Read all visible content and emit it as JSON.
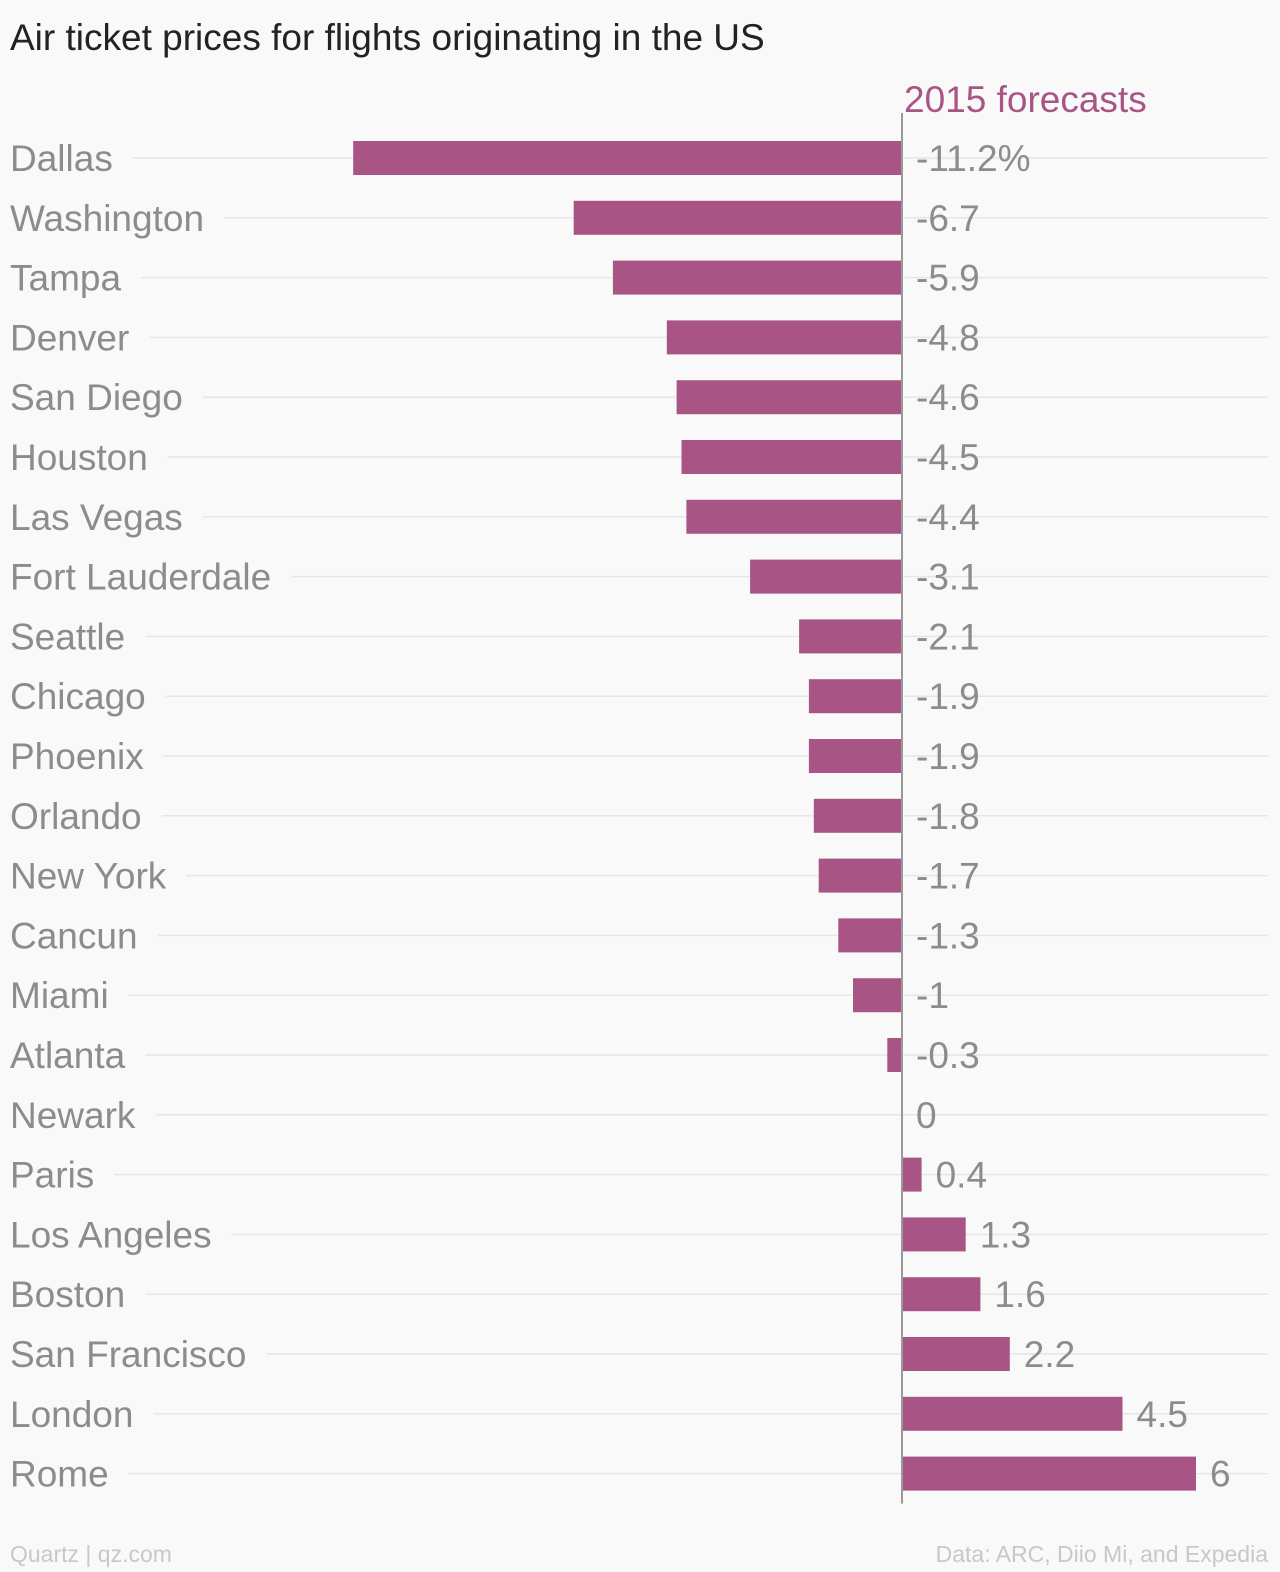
{
  "chart_data": {
    "type": "bar",
    "orientation": "horizontal",
    "title": "Air ticket prices for flights originating in the US",
    "series": [
      {
        "name": "2015 forecasts",
        "color": "#a85586",
        "values": [
          -11.2,
          -6.7,
          -5.9,
          -4.8,
          -4.6,
          -4.5,
          -4.4,
          -3.1,
          -2.1,
          -1.9,
          -1.9,
          -1.8,
          -1.7,
          -1.3,
          -1,
          -0.3,
          0,
          0.4,
          1.3,
          1.6,
          2.2,
          4.5,
          6
        ]
      }
    ],
    "categories": [
      "Dallas",
      "Washington",
      "Tampa",
      "Denver",
      "San Diego",
      "Houston",
      "Las Vegas",
      "Fort Lauderdale",
      "Seattle",
      "Chicago",
      "Phoenix",
      "Orlando",
      "New York",
      "Cancun",
      "Miami",
      "Atlanta",
      "Newark",
      "Paris",
      "Los Angeles",
      "Boston",
      "San Francisco",
      "London",
      "Rome"
    ],
    "value_labels": [
      "-11.2%",
      "-6.7",
      "-5.9",
      "-4.8",
      "-4.6",
      "-4.5",
      "-4.4",
      "-3.1",
      "-2.1",
      "-1.9",
      "-1.9",
      "-1.8",
      "-1.7",
      "-1.3",
      "-1",
      "-0.3",
      "0",
      "0.4",
      "1.3",
      "1.6",
      "2.2",
      "4.5",
      "6"
    ],
    "xlim": [
      -11.2,
      6
    ],
    "grid": true,
    "source": "Data: ARC, Diio Mi, and Expedia",
    "credit": "Quartz | qz.com"
  }
}
